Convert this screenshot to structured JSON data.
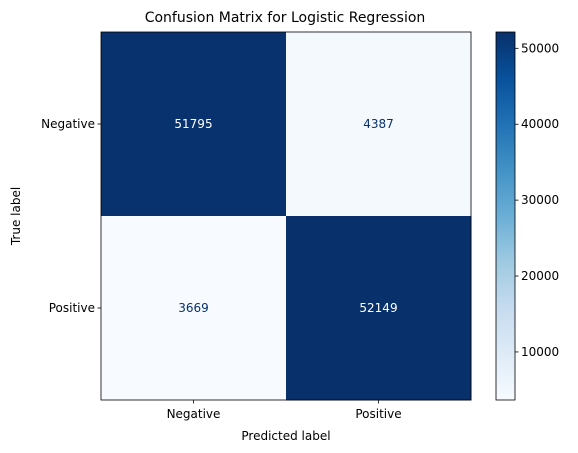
{
  "chart_data": {
    "type": "heatmap",
    "title": "Confusion Matrix for Logistic Regression",
    "xlabel": "Predicted label",
    "ylabel": "True label",
    "x_categories": [
      "Negative",
      "Positive"
    ],
    "y_categories": [
      "Negative",
      "Positive"
    ],
    "values": [
      [
        51795,
        4387
      ],
      [
        3669,
        52149
      ]
    ],
    "value_labels": [
      [
        "51795",
        "4387"
      ],
      [
        "3669",
        "52149"
      ]
    ],
    "colormap": "Blues",
    "colorbar": {
      "range": [
        3669,
        52149
      ],
      "ticks": [
        10000,
        20000,
        30000,
        40000,
        50000
      ],
      "tick_labels": [
        "10000",
        "20000",
        "30000",
        "40000",
        "50000"
      ]
    },
    "grid": false,
    "text_colors": {
      "on_dark": "#ffffff",
      "on_light": "#08306b"
    }
  }
}
